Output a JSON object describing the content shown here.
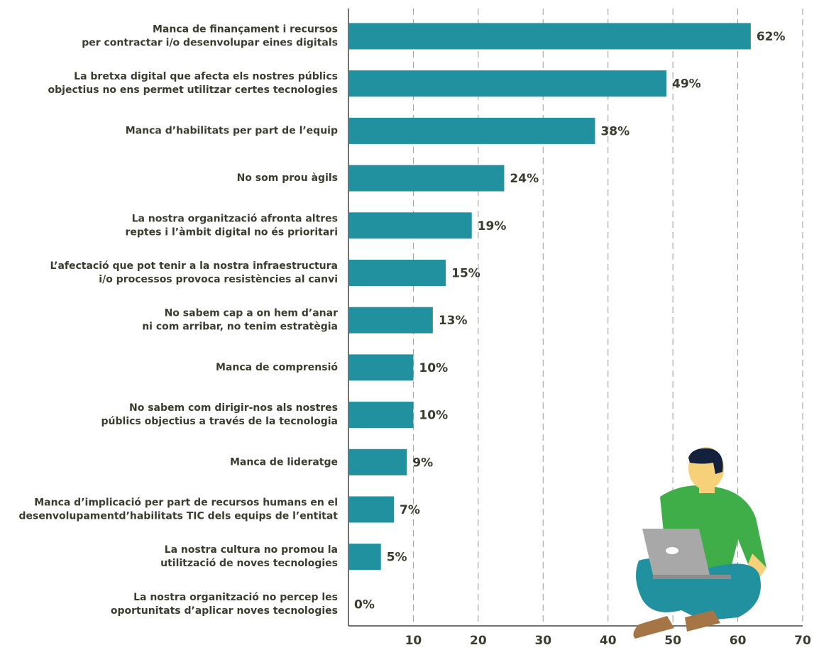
{
  "chart_data": {
    "type": "bar",
    "orientation": "horizontal",
    "categories": [
      [
        "Manca de finançament i recursos",
        "per contractar i/o desenvolupar eines digitals"
      ],
      [
        "La bretxa digital que afecta els nostres públics",
        "objectius no ens permet utilitzar certes tecnologies"
      ],
      [
        "Manca d’habilitats per part de l’equip"
      ],
      [
        "No som prou àgils"
      ],
      [
        "La nostra organització afronta altres",
        "reptes i l’àmbit digital no és prioritari"
      ],
      [
        "L’afectació que pot tenir a la nostra infraestructura",
        "i/o processos provoca resistències al canvi"
      ],
      [
        "No sabem cap a on hem d’anar",
        "ni com arribar, no tenim estratègia"
      ],
      [
        "Manca de comprensió"
      ],
      [
        "No sabem com dirigir-nos als nostres",
        "públics objectius a través de la tecnologia"
      ],
      [
        "Manca de lideratge"
      ],
      [
        "Manca d’implicació per part de recursos humans en el",
        "desenvolupamentd’habilitats TIC dels equips de l’entitat"
      ],
      [
        "La nostra cultura no promou la",
        "utilització de noves tecnologies"
      ],
      [
        "La nostra organització no percep les",
        "oportunitats d’aplicar noves tecnologies"
      ]
    ],
    "values": [
      62,
      49,
      38,
      24,
      19,
      15,
      13,
      10,
      10,
      9,
      7,
      5,
      0
    ],
    "value_labels": [
      "62%",
      "49%",
      "38%",
      "24%",
      "19%",
      "15%",
      "13%",
      "10%",
      "10%",
      "9%",
      "7%",
      "5%",
      "0%"
    ],
    "color": "#2191a0",
    "xlim": [
      0,
      70
    ],
    "xticks": [
      10,
      20,
      30,
      40,
      50,
      60,
      70
    ],
    "grid": true
  }
}
